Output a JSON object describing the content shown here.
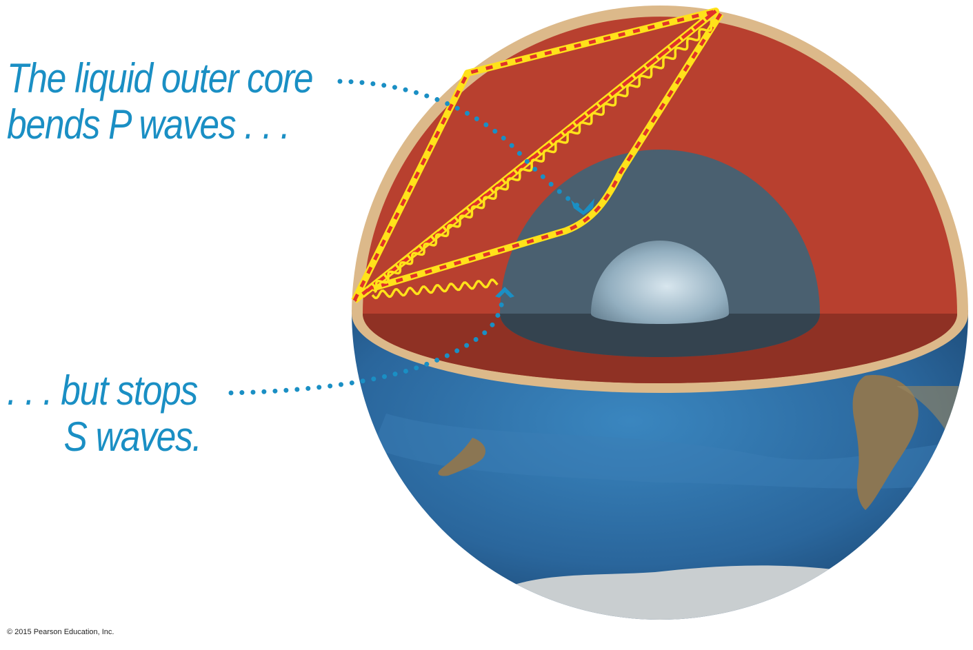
{
  "labels": {
    "p_wave_line1": "The liquid outer core",
    "p_wave_line2": "bends P waves . . .",
    "s_wave_line1": ". . . but stops",
    "s_wave_line2": "S waves.",
    "copyright": "© 2015 Pearson Education, Inc."
  },
  "colors": {
    "label": "#1a8fc4",
    "crust": "#dcb98a",
    "mantle": "#b8402f",
    "mantle_shadow": "#8f3124",
    "outer_core": "#4a6070",
    "outer_core_shadow": "#34434f",
    "inner_core": "#a9c1d0",
    "ocean": "#2d6fa6",
    "p_wave": "#ffe21a",
    "p_wave_dash": "#e0322a",
    "s_wave": "#ffe21a",
    "arrow": "#1a8fc4"
  },
  "icons": {
    "pointer_p": "dotted-arrow-down-icon",
    "pointer_s": "dotted-arrow-up-icon"
  }
}
